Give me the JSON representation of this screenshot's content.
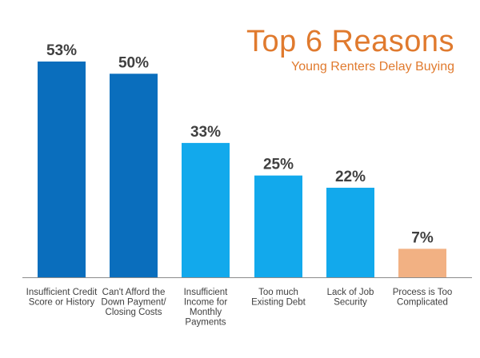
{
  "chart_data": {
    "type": "bar",
    "title": "Top 6 Reasons",
    "subtitle": "Young Renters Delay Buying",
    "categories": [
      [
        "Insufficient Credit",
        "Score or History"
      ],
      [
        "Can't Afford the",
        "Down Payment/",
        "Closing Costs"
      ],
      [
        "Insufficient",
        "Income for",
        "Monthly",
        "Payments"
      ],
      [
        "Too much",
        "Existing Debt"
      ],
      [
        "Lack of Job",
        "Security"
      ],
      [
        "Process is Too",
        "Complicated"
      ]
    ],
    "values": [
      53,
      50,
      33,
      25,
      22,
      7
    ],
    "data_labels": [
      "53%",
      "50%",
      "33%",
      "25%",
      "22%",
      "7%"
    ],
    "bar_colors": [
      "#0a6ebd",
      "#0a6ebd",
      "#12a9ec",
      "#12a9ec",
      "#12a9ec",
      "#f2b183"
    ],
    "ylim": [
      0,
      53
    ],
    "grid": false,
    "legend": "none",
    "title_color": "#e07a2e"
  }
}
